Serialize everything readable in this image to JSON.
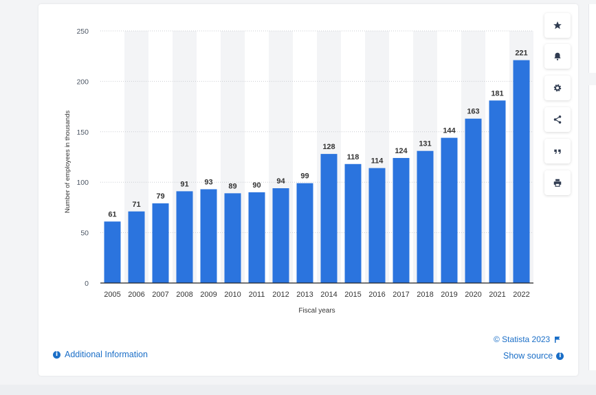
{
  "chart_data": {
    "type": "bar",
    "categories": [
      "2005",
      "2006",
      "2007",
      "2008",
      "2009",
      "2010",
      "2011",
      "2012",
      "2013",
      "2014",
      "2015",
      "2016",
      "2017",
      "2018",
      "2019",
      "2020",
      "2021",
      "2022"
    ],
    "values": [
      61,
      71,
      79,
      91,
      93,
      89,
      90,
      94,
      99,
      128,
      118,
      114,
      124,
      131,
      144,
      163,
      181,
      221
    ],
    "xlabel": "Fiscal years",
    "ylabel": "Number of employees in thousands",
    "ylim": [
      0,
      250
    ],
    "yticks": [
      0,
      50,
      100,
      150,
      200,
      250
    ],
    "grid": true,
    "data_labels": true,
    "bar_color": "#2b74de"
  },
  "toolbar": {
    "buttons": [
      {
        "name": "favorite-button",
        "icon": "star-icon"
      },
      {
        "name": "notification-button",
        "icon": "bell-icon"
      },
      {
        "name": "settings-button",
        "icon": "gear-icon"
      },
      {
        "name": "share-button",
        "icon": "share-icon"
      },
      {
        "name": "cite-button",
        "icon": "quote-icon"
      },
      {
        "name": "print-button",
        "icon": "printer-icon"
      }
    ]
  },
  "footer": {
    "additional_info": "Additional Information",
    "copyright": "© Statista 2023",
    "show_source": "Show source"
  },
  "colors": {
    "link": "#1a6ec7",
    "bar": "#2b74de",
    "icon": "#2f3b50"
  }
}
